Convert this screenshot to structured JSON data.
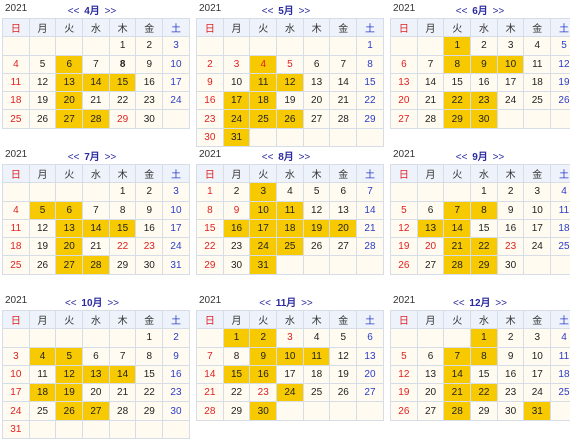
{
  "weekdays": [
    "日",
    "月",
    "火",
    "水",
    "木",
    "金",
    "土"
  ],
  "nav": {
    "prev": "<<",
    "next": ">>"
  },
  "colors": {
    "highlight": "#f7c900",
    "cell_bg": "#fffbf0",
    "header_bg": "#eef3fb",
    "sunday": "#e02020",
    "saturday": "#2a3cc8",
    "nav": "#2a2aa0"
  },
  "months": [
    {
      "year": "2021",
      "name": "4月",
      "first_dow": 4,
      "days": 30,
      "highlighted": [
        6,
        13,
        14,
        15,
        20,
        27,
        28
      ],
      "holidays": [
        29
      ],
      "bold": [
        8
      ]
    },
    {
      "year": "2021",
      "name": "5月",
      "first_dow": 6,
      "days": 31,
      "highlighted": [
        4,
        11,
        12,
        17,
        18,
        24,
        25,
        26,
        31
      ],
      "holidays": [
        3,
        4,
        5
      ],
      "bold": []
    },
    {
      "year": "2021",
      "name": "6月",
      "first_dow": 2,
      "days": 30,
      "highlighted": [
        1,
        8,
        9,
        10,
        22,
        23,
        29,
        30
      ],
      "holidays": [],
      "bold": []
    },
    {
      "year": "2021",
      "name": "7月",
      "first_dow": 4,
      "days": 31,
      "highlighted": [
        5,
        6,
        13,
        14,
        15,
        20,
        27,
        28
      ],
      "holidays": [
        22,
        23
      ],
      "bold": []
    },
    {
      "year": "2021",
      "name": "8月",
      "first_dow": 0,
      "days": 31,
      "highlighted": [
        3,
        10,
        11,
        16,
        17,
        18,
        19,
        20,
        24,
        25,
        31
      ],
      "holidays": [
        9
      ],
      "bold": []
    },
    {
      "year": "2021",
      "name": "9月",
      "first_dow": 3,
      "days": 30,
      "highlighted": [
        7,
        8,
        13,
        14,
        21,
        22,
        28,
        29
      ],
      "holidays": [
        20,
        23
      ],
      "bold": []
    },
    {
      "year": "2021",
      "name": "10月",
      "first_dow": 5,
      "days": 31,
      "highlighted": [
        4,
        5,
        12,
        13,
        14,
        18,
        19,
        26,
        27
      ],
      "holidays": [],
      "bold": []
    },
    {
      "year": "2021",
      "name": "11月",
      "first_dow": 1,
      "days": 30,
      "highlighted": [
        1,
        2,
        9,
        10,
        11,
        15,
        16,
        24,
        30
      ],
      "holidays": [
        3,
        23
      ],
      "bold": []
    },
    {
      "year": "2021",
      "name": "12月",
      "first_dow": 3,
      "days": 31,
      "highlighted": [
        1,
        7,
        8,
        14,
        21,
        22,
        28,
        31
      ],
      "holidays": [],
      "bold": []
    }
  ]
}
